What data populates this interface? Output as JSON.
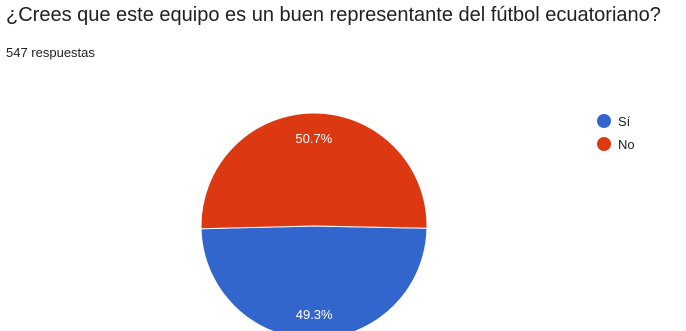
{
  "question": "¿Crees que este equipo es un buen representante del fútbol ecuatoriano?",
  "responses_label": "547 respuestas",
  "chart_data": {
    "type": "pie",
    "title": "¿Crees que este equipo es un buen representante del fútbol ecuatoriano?",
    "total_responses": 547,
    "legend_position": "top-right",
    "slices": [
      {
        "label": "Sí",
        "value": 49.3,
        "display": "49.3%",
        "color": "#3366cc"
      },
      {
        "label": "No",
        "value": 50.7,
        "display": "50.7%",
        "color": "#dc3912"
      }
    ]
  }
}
